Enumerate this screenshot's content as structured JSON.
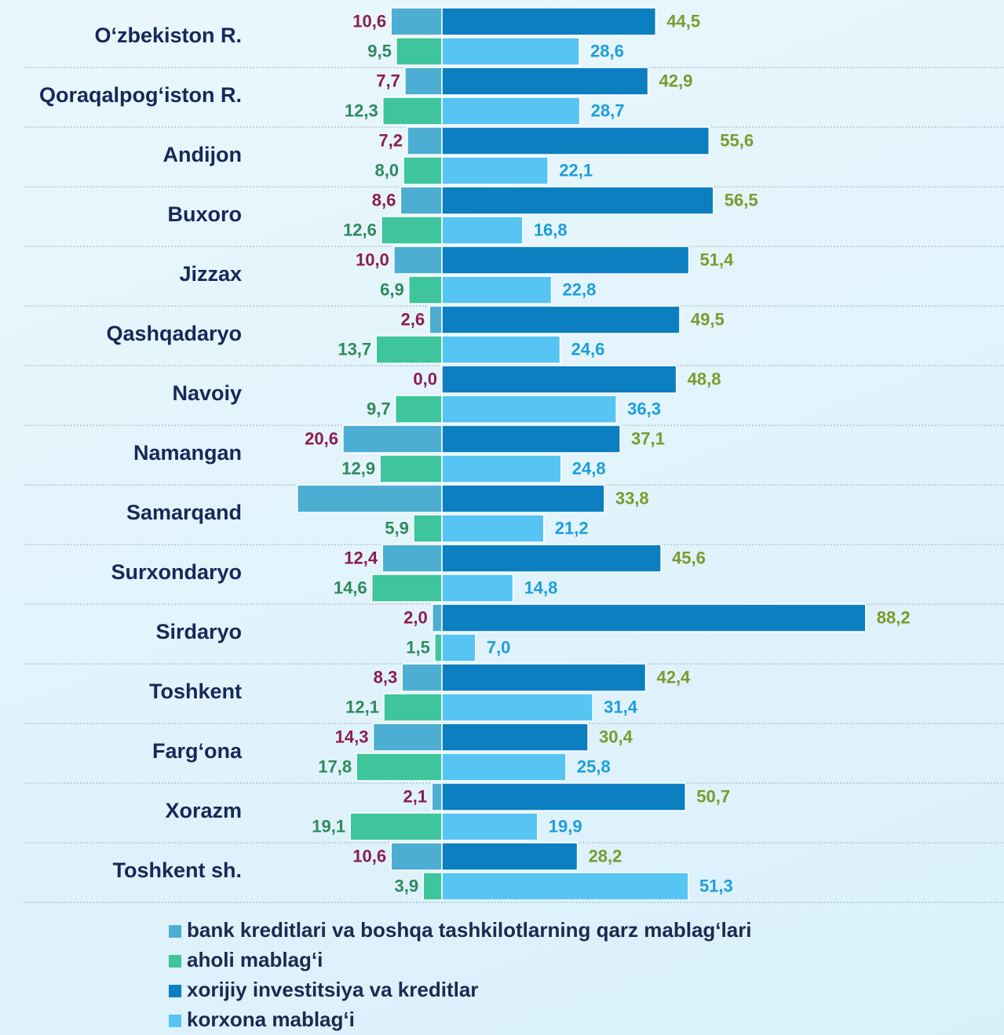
{
  "chart_data": {
    "type": "diverging-bar",
    "categories": [
      "O‘zbekiston R.",
      "Qoraqalpog‘iston R.",
      "Andijon",
      "Buxoro",
      "Jizzax",
      "Qashqadaryo",
      "Navoiy",
      "Namangan",
      "Samarqand",
      "Surxondaryo",
      "Sirdaryo",
      "Toshkent",
      "Farg‘ona",
      "Xorazm",
      "Toshkent sh."
    ],
    "xlim": [
      -92,
      117
    ],
    "series": [
      {
        "name": "bank kreditlari va boshqa tashkilotlarning qarz mablag‘lari",
        "color": "#4baed2",
        "label_color": "#8c1d4f",
        "side": "left",
        "values": [
          10.6,
          7.7,
          7.2,
          8.6,
          10.0,
          2.6,
          0.0,
          20.6,
          30.1,
          12.4,
          2.0,
          8.3,
          14.3,
          2.1,
          10.6
        ],
        "value_labels": [
          "10,6",
          "7,7",
          "7,2",
          "8,6",
          "10,0",
          "2,6",
          "0,0",
          "20,6",
          null,
          "12,4",
          "2,0",
          "8,3",
          "14,3",
          "2,1",
          "10,6"
        ]
      },
      {
        "name": "aholi mablag‘i",
        "color": "#3ec59b",
        "label_color": "#2f8a5c",
        "side": "left",
        "values": [
          9.5,
          12.3,
          8.0,
          12.6,
          6.9,
          13.7,
          9.7,
          12.9,
          5.9,
          14.6,
          1.5,
          12.1,
          17.8,
          19.1,
          3.9
        ],
        "value_labels": [
          "9,5",
          "12,3",
          "8,0",
          "12,6",
          "6,9",
          "13,7",
          "9,7",
          "12,9",
          "5,9",
          "14,6",
          "1,5",
          "12,1",
          "17,8",
          "19,1",
          "3,9"
        ]
      },
      {
        "name": "xorijiy investitsiya va kreditlar",
        "color": "#0b7fc0",
        "label_color": "#7b9a2d",
        "side": "right",
        "values": [
          44.5,
          42.9,
          55.6,
          56.5,
          51.4,
          49.5,
          48.8,
          37.1,
          33.8,
          45.6,
          88.2,
          42.4,
          30.4,
          50.7,
          28.2
        ],
        "value_labels": [
          "44,5",
          "42,9",
          "55,6",
          "56,5",
          "51,4",
          "49,5",
          "48,8",
          "37,1",
          "33,8",
          "45,6",
          "88,2",
          "42,4",
          "30,4",
          "50,7",
          "28,2"
        ]
      },
      {
        "name": "korxona mablag‘i",
        "color": "#56c5f4",
        "label_color": "#1b9fdc",
        "side": "right",
        "values": [
          28.6,
          28.7,
          22.1,
          16.8,
          22.8,
          24.6,
          36.3,
          24.8,
          21.2,
          14.8,
          7.0,
          31.4,
          25.8,
          19.9,
          51.3
        ],
        "value_labels": [
          "28,6",
          "28,7",
          "22,1",
          "16,8",
          "22,8",
          "24,6",
          "36,3",
          "24,8",
          "21,2",
          "14,8",
          "7,0",
          "31,4",
          "25,8",
          "19,9",
          "51,3"
        ]
      }
    ]
  }
}
